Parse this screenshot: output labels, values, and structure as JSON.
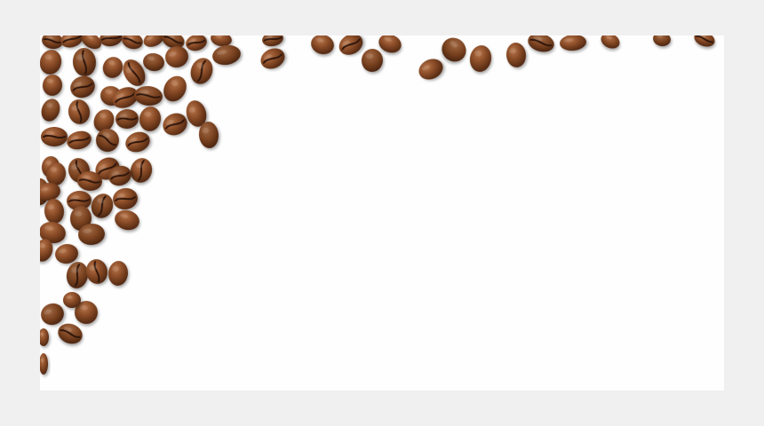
{
  "scene": {
    "subject": "coffee-beans",
    "colors": {
      "page_background": "#f1f0f1",
      "photo_background": "#fefefe",
      "bean_light": "#a9673a",
      "bean_mid": "#7e4522",
      "bean_dark": "#4a230f",
      "bean_crease": "#2e1407",
      "bean_shadow": "#bdb5ae"
    },
    "icons": {
      "bean": "coffee-bean-icon"
    }
  }
}
